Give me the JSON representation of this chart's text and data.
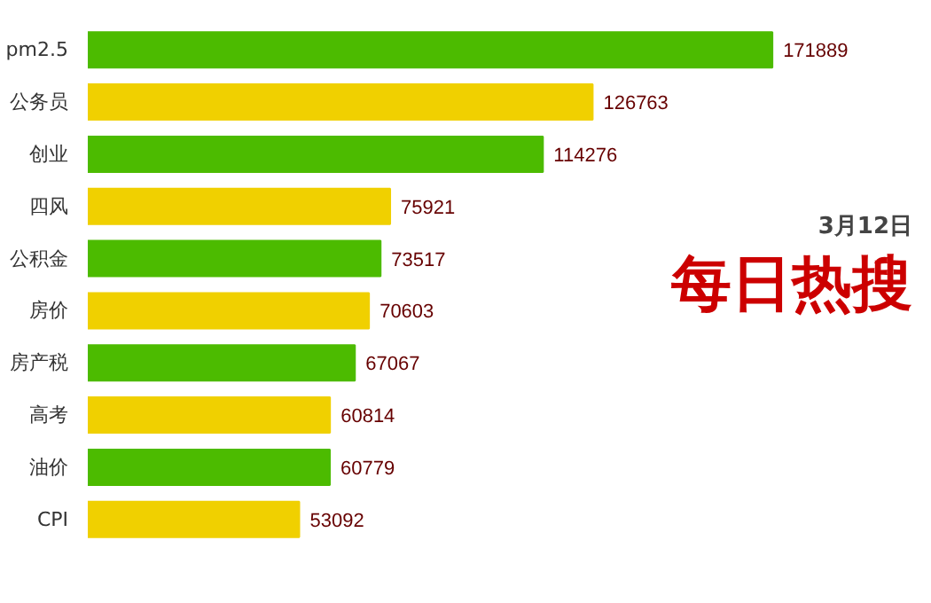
{
  "chart_data": {
    "type": "bar",
    "orientation": "horizontal",
    "title": "每日热搜",
    "subtitle": "3月12日",
    "categories": [
      "pm2.5",
      "公务员",
      "创业",
      "四风",
      "公积金",
      "房价",
      "房产税",
      "高考",
      "油价",
      "CPI"
    ],
    "values": [
      171889,
      126763,
      114276,
      75921,
      73517,
      70603,
      67067,
      60814,
      60779,
      53092
    ],
    "colors": [
      "#4cbb00",
      "#f0d000",
      "#4cbb00",
      "#f0d000",
      "#4cbb00",
      "#f0d000",
      "#4cbb00",
      "#f0d000",
      "#4cbb00",
      "#f0d000"
    ],
    "data_labels": true
  }
}
